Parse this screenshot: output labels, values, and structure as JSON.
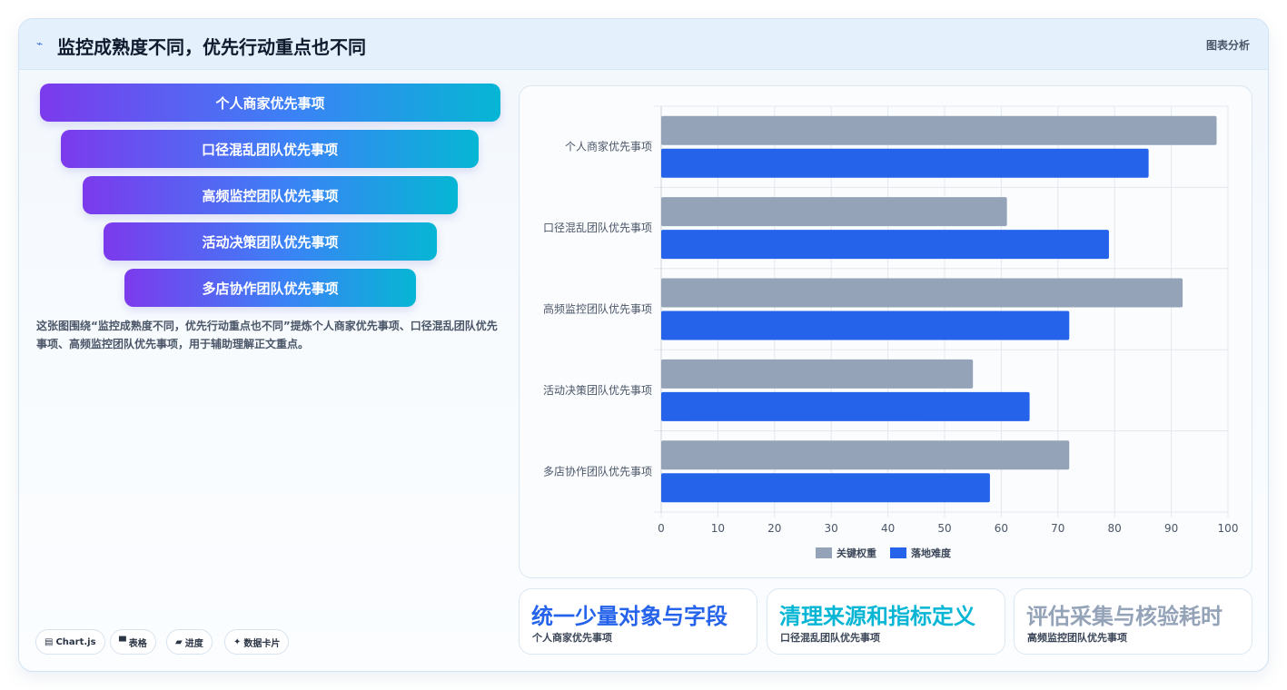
{
  "header": {
    "icon": "pulse-icon",
    "title": "监控成熟度不同，优先行动重点也不同",
    "right_label": "图表分析"
  },
  "funnel": {
    "items": [
      {
        "label": "个人商家优先事项"
      },
      {
        "label": "口径混乱团队优先事项"
      },
      {
        "label": "高频监控团队优先事项"
      },
      {
        "label": "活动决策团队优先事项"
      },
      {
        "label": "多店协作团队优先事项"
      }
    ]
  },
  "description": "这张图围绕“监控成熟度不同，优先行动重点也不同”提炼个人商家优先事项、口径混乱团队优先事项、高频监控团队优先事项，用于辅助理解正文重点。",
  "tags": [
    {
      "icon": "chart-icon",
      "glyph": "▤",
      "label": "Chart.js"
    },
    {
      "icon": "table-icon",
      "glyph": "▀",
      "label": "表格"
    },
    {
      "icon": "progress-icon",
      "glyph": "▰",
      "label": "进度"
    },
    {
      "icon": "sparkle-icon",
      "glyph": "✦",
      "label": "数据卡片"
    }
  ],
  "chart_data": {
    "type": "bar",
    "orientation": "horizontal",
    "categories": [
      "个人商家优先事项",
      "口径混乱团队优先事项",
      "高频监控团队优先事项",
      "活动决策团队优先事项",
      "多店协作团队优先事项"
    ],
    "series": [
      {
        "name": "关键权重",
        "color": "#94a3b8",
        "values": [
          98,
          61,
          92,
          55,
          72
        ]
      },
      {
        "name": "落地难度",
        "color": "#2563eb",
        "values": [
          86,
          79,
          72,
          65,
          58
        ]
      }
    ],
    "xlim": [
      0,
      100
    ],
    "xticks": [
      0,
      10,
      20,
      30,
      40,
      50,
      60,
      70,
      80,
      90,
      100
    ],
    "grid": true,
    "legend": "bottom"
  },
  "kpis": [
    {
      "value": "统一少量对象与字段",
      "label": "个人商家优先事项",
      "color": "#2563eb"
    },
    {
      "value": "清理来源和指标定义",
      "label": "口径混乱团队优先事项",
      "color": "#06b6d4"
    },
    {
      "value": "评估采集与核验耗时",
      "label": "高频监控团队优先事项",
      "color": "#94a3b8"
    }
  ]
}
